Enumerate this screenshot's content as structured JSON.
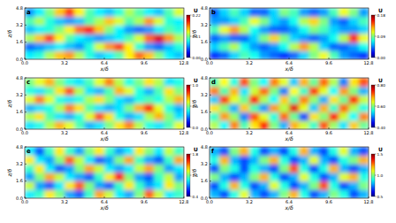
{
  "chart_data": [
    {
      "type": "heatmap",
      "title": "a",
      "x_label": "x/δ",
      "y_label": "z/δ",
      "colorbar_label": "U",
      "grid": false,
      "xlim": [
        0,
        12.8
      ],
      "ylim": [
        0,
        4.8
      ],
      "xticks": [
        {
          "value": 0,
          "label": "0.0"
        },
        3.2,
        6.4,
        9.6,
        12.8
      ],
      "yticks": [
        {
          "value": 0,
          "label": "0.0"
        },
        1.6,
        3.2,
        4.8
      ],
      "color_range": [
        0,
        0.22
      ],
      "color_ticks": [
        {
          "value": 0,
          "label": "0.00"
        },
        0.11,
        0.22
      ],
      "values": [
        [
          0.08,
          0.09,
          0.12,
          0.15,
          0.16,
          0.12,
          0.09,
          0.07,
          0.08,
          0.1,
          0.14,
          0.17,
          0.15,
          0.11,
          0.08,
          0.07
        ],
        [
          0.05,
          0.06,
          0.07,
          0.08,
          0.07,
          0.06,
          0.09,
          0.13,
          0.16,
          0.18,
          0.14,
          0.09,
          0.06,
          0.05,
          0.07,
          0.09
        ],
        [
          0.12,
          0.15,
          0.18,
          0.14,
          0.1,
          0.08,
          0.07,
          0.06,
          0.07,
          0.08,
          0.1,
          0.13,
          0.17,
          0.2,
          0.16,
          0.12
        ],
        [
          0.07,
          0.08,
          0.09,
          0.11,
          0.14,
          0.17,
          0.19,
          0.15,
          0.11,
          0.08,
          0.06,
          0.05,
          0.06,
          0.08,
          0.1,
          0.09
        ],
        [
          0.1,
          0.12,
          0.09,
          0.07,
          0.06,
          0.07,
          0.1,
          0.12,
          0.15,
          0.13,
          0.1,
          0.12,
          0.16,
          0.13,
          0.09,
          0.08
        ],
        [
          0.06,
          0.08,
          0.11,
          0.15,
          0.18,
          0.14,
          0.1,
          0.08,
          0.07,
          0.09,
          0.12,
          0.1,
          0.08,
          0.07,
          0.1,
          0.13
        ]
      ]
    },
    {
      "type": "heatmap",
      "title": "b",
      "x_label": "x/δ",
      "y_label": "z/δ",
      "colorbar_label": "U",
      "grid": false,
      "xlim": [
        0,
        12.8
      ],
      "ylim": [
        0,
        4.8
      ],
      "xticks": [
        {
          "value": 0,
          "label": "0.0"
        },
        3.2,
        6.4,
        9.6,
        12.8
      ],
      "yticks": [
        {
          "value": 0,
          "label": "0.0"
        },
        1.6,
        3.2,
        4.8
      ],
      "color_range": [
        0,
        0.18
      ],
      "color_ticks": [
        {
          "value": 0,
          "label": "0.00"
        },
        0.09,
        0.18
      ],
      "values": [
        [
          0.03,
          0.04,
          0.06,
          0.08,
          0.07,
          0.05,
          0.04,
          0.03,
          0.04,
          0.06,
          0.09,
          0.11,
          0.08,
          0.05,
          0.04,
          0.03
        ],
        [
          0.06,
          0.08,
          0.1,
          0.07,
          0.05,
          0.04,
          0.05,
          0.07,
          0.1,
          0.13,
          0.1,
          0.06,
          0.04,
          0.04,
          0.05,
          0.07
        ],
        [
          0.04,
          0.05,
          0.04,
          0.04,
          0.06,
          0.09,
          0.12,
          0.09,
          0.06,
          0.05,
          0.04,
          0.05,
          0.07,
          0.1,
          0.15,
          0.11
        ],
        [
          0.08,
          0.11,
          0.13,
          0.1,
          0.07,
          0.05,
          0.04,
          0.04,
          0.05,
          0.07,
          0.09,
          0.08,
          0.06,
          0.05,
          0.05,
          0.06
        ],
        [
          0.05,
          0.05,
          0.06,
          0.08,
          0.11,
          0.09,
          0.06,
          0.05,
          0.07,
          0.1,
          0.12,
          0.09,
          0.05,
          0.04,
          0.06,
          0.08
        ],
        [
          0.04,
          0.06,
          0.08,
          0.06,
          0.04,
          0.04,
          0.06,
          0.09,
          0.08,
          0.05,
          0.04,
          0.05,
          0.08,
          0.11,
          0.09,
          0.05
        ]
      ]
    },
    {
      "type": "heatmap",
      "title": "c",
      "x_label": "x/δ",
      "y_label": "z/δ",
      "colorbar_label": "U",
      "grid": false,
      "xlim": [
        0,
        12.8
      ],
      "ylim": [
        0,
        4.8
      ],
      "xticks": [
        {
          "value": 0,
          "label": "0.0"
        },
        3.2,
        6.4,
        9.6,
        12.8
      ],
      "yticks": [
        {
          "value": 0,
          "label": "0.0"
        },
        1.6,
        3.2,
        4.8
      ],
      "color_range": [
        0,
        1.0
      ],
      "color_ticks": [
        {
          "value": 0,
          "label": "0.0"
        },
        0.5,
        {
          "value": 1,
          "label": "1.0"
        }
      ],
      "values": [
        [
          0.35,
          0.4,
          0.55,
          0.7,
          0.6,
          0.45,
          0.3,
          0.35,
          0.5,
          0.65,
          0.75,
          0.55,
          0.4,
          0.35,
          0.45,
          0.6
        ],
        [
          0.55,
          0.65,
          0.45,
          0.35,
          0.3,
          0.4,
          0.6,
          0.8,
          0.65,
          0.4,
          0.3,
          0.35,
          0.55,
          0.7,
          0.5,
          0.35
        ],
        [
          0.3,
          0.35,
          0.4,
          0.55,
          0.75,
          0.65,
          0.45,
          0.35,
          0.3,
          0.35,
          0.5,
          0.7,
          0.85,
          0.6,
          0.4,
          0.3
        ],
        [
          0.6,
          0.75,
          0.6,
          0.4,
          0.35,
          0.4,
          0.55,
          0.65,
          0.5,
          0.35,
          0.3,
          0.4,
          0.45,
          0.4,
          0.55,
          0.7
        ],
        [
          0.4,
          0.35,
          0.45,
          0.65,
          0.8,
          0.55,
          0.35,
          0.3,
          0.45,
          0.7,
          0.6,
          0.4,
          0.3,
          0.45,
          0.65,
          0.5
        ],
        [
          0.5,
          0.6,
          0.7,
          0.5,
          0.4,
          0.35,
          0.45,
          0.6,
          0.75,
          0.55,
          0.4,
          0.5,
          0.65,
          0.55,
          0.35,
          0.4
        ]
      ]
    },
    {
      "type": "heatmap",
      "title": "d",
      "x_label": "x/δ",
      "y_label": "z/δ",
      "colorbar_label": "U",
      "grid": false,
      "xlim": [
        0,
        12.8
      ],
      "ylim": [
        0,
        4.8
      ],
      "xticks": [
        {
          "value": 0,
          "label": "0.0"
        },
        3.2,
        6.4,
        9.6,
        12.8
      ],
      "yticks": [
        {
          "value": 0,
          "label": "0.0"
        },
        1.6,
        3.2,
        4.8
      ],
      "color_range": [
        0.4,
        0.8
      ],
      "color_ticks": [
        {
          "value": 0.4,
          "label": "0.40"
        },
        {
          "value": 0.6,
          "label": "0.60"
        },
        {
          "value": 0.8,
          "label": "0.80"
        }
      ],
      "values": [
        [
          0.62,
          0.55,
          0.7,
          0.58,
          0.66,
          0.74,
          0.6,
          0.52,
          0.68,
          0.63,
          0.57,
          0.72,
          0.61,
          0.54,
          0.67,
          0.59
        ],
        [
          0.57,
          0.69,
          0.61,
          0.5,
          0.72,
          0.64,
          0.56,
          0.71,
          0.59,
          0.48,
          0.66,
          0.6,
          0.75,
          0.63,
          0.55,
          0.7
        ],
        [
          0.66,
          0.6,
          0.52,
          0.67,
          0.58,
          0.51,
          0.69,
          0.62,
          0.76,
          0.64,
          0.53,
          0.68,
          0.57,
          0.71,
          0.62,
          0.56
        ],
        [
          0.53,
          0.73,
          0.64,
          0.59,
          0.75,
          0.62,
          0.55,
          0.67,
          0.58,
          0.7,
          0.61,
          0.52,
          0.66,
          0.59,
          0.74,
          0.63
        ],
        [
          0.7,
          0.58,
          0.68,
          0.54,
          0.63,
          0.71,
          0.6,
          0.5,
          0.65,
          0.57,
          0.73,
          0.64,
          0.55,
          0.69,
          0.6,
          0.52
        ],
        [
          0.58,
          0.65,
          0.56,
          0.72,
          0.6,
          0.55,
          0.7,
          0.64,
          0.53,
          0.68,
          0.59,
          0.71,
          0.62,
          0.5,
          0.66,
          0.72
        ]
      ]
    },
    {
      "type": "heatmap",
      "title": "e",
      "x_label": "x/δ",
      "y_label": "z/δ",
      "colorbar_label": "U",
      "grid": false,
      "xlim": [
        0,
        12.8
      ],
      "ylim": [
        0,
        4.8
      ],
      "xticks": [
        {
          "value": 0,
          "label": "0.0"
        },
        3.2,
        6.4,
        9.6,
        12.8
      ],
      "yticks": [
        {
          "value": 0,
          "label": "0.0"
        },
        1.6,
        3.2,
        4.8
      ],
      "color_range": [
        0.4,
        1.8
      ],
      "color_ticks": [
        0.4,
        1.1,
        1.8
      ],
      "values": [
        [
          0.9,
          1.0,
          1.3,
          1.1,
          0.8,
          0.7,
          1.0,
          1.4,
          1.2,
          0.9,
          0.8,
          1.1,
          1.5,
          1.2,
          0.9,
          1.0
        ],
        [
          1.2,
          0.8,
          0.7,
          0.9,
          1.3,
          1.5,
          1.1,
          0.8,
          0.7,
          1.0,
          1.3,
          1.0,
          0.8,
          0.9,
          1.3,
          1.1
        ],
        [
          0.8,
          1.1,
          1.4,
          1.2,
          0.9,
          0.8,
          0.7,
          1.0,
          1.3,
          1.6,
          1.1,
          0.8,
          0.7,
          1.0,
          1.2,
          0.8
        ],
        [
          1.0,
          1.3,
          0.9,
          0.7,
          0.8,
          1.1,
          1.4,
          1.2,
          0.9,
          0.8,
          0.9,
          1.2,
          1.4,
          1.1,
          0.8,
          0.9
        ],
        [
          1.3,
          0.9,
          0.8,
          1.1,
          1.5,
          1.2,
          0.9,
          0.7,
          0.8,
          1.1,
          1.4,
          1.0,
          0.8,
          0.7,
          1.0,
          1.4
        ],
        [
          0.9,
          0.7,
          1.0,
          1.3,
          1.0,
          0.8,
          1.1,
          1.3,
          1.0,
          0.8,
          0.9,
          1.3,
          1.1,
          0.9,
          1.2,
          1.0
        ]
      ]
    },
    {
      "type": "heatmap",
      "title": "f",
      "x_label": "x/δ",
      "y_label": "z/δ",
      "colorbar_label": "U",
      "grid": false,
      "xlim": [
        0,
        12.8
      ],
      "ylim": [
        0,
        4.8
      ],
      "xticks": [
        {
          "value": 0,
          "label": "0.0"
        },
        3.2,
        6.4,
        9.6,
        12.8
      ],
      "yticks": [
        {
          "value": 0,
          "label": "0.0"
        },
        1.6,
        3.2,
        4.8
      ],
      "color_range": [
        0.5,
        1.5
      ],
      "color_ticks": [
        0.5,
        {
          "value": 1,
          "label": "1.0"
        },
        1.5
      ],
      "values": [
        [
          0.8,
          0.7,
          0.9,
          1.1,
          0.8,
          0.7,
          0.8,
          1.0,
          1.2,
          0.9,
          0.7,
          0.8,
          1.0,
          0.9,
          0.7,
          0.8
        ],
        [
          0.7,
          0.9,
          1.2,
          0.9,
          0.7,
          0.8,
          1.1,
          0.9,
          0.7,
          0.8,
          1.0,
          1.3,
          0.9,
          0.7,
          0.8,
          1.0
        ],
        [
          1.0,
          0.8,
          0.7,
          0.8,
          1.0,
          1.2,
          0.9,
          0.7,
          0.8,
          1.1,
          0.9,
          0.7,
          0.8,
          1.1,
          1.2,
          0.9
        ],
        [
          0.7,
          1.0,
          0.9,
          0.7,
          0.9,
          0.8,
          0.7,
          1.0,
          1.3,
          0.9,
          0.7,
          0.9,
          1.2,
          0.8,
          0.7,
          0.8
        ],
        [
          0.9,
          1.2,
          0.8,
          0.7,
          0.8,
          1.0,
          1.2,
          0.9,
          0.7,
          0.8,
          1.1,
          0.8,
          0.7,
          0.9,
          1.0,
          1.2
        ],
        [
          0.8,
          0.7,
          1.0,
          1.2,
          0.9,
          0.7,
          0.8,
          0.7,
          0.9,
          1.2,
          0.8,
          0.7,
          0.9,
          1.1,
          0.8,
          0.7
        ]
      ]
    }
  ]
}
